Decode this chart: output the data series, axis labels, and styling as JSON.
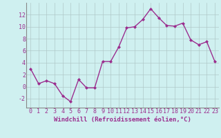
{
  "x": [
    0,
    1,
    2,
    3,
    4,
    5,
    6,
    7,
    8,
    9,
    10,
    11,
    12,
    13,
    14,
    15,
    16,
    17,
    18,
    19,
    20,
    21,
    22,
    23
  ],
  "y": [
    3,
    0.5,
    1,
    0.5,
    -1.5,
    -2.5,
    1.2,
    -0.2,
    -0.2,
    4.2,
    4.2,
    6.6,
    9.8,
    10.0,
    11.2,
    13.0,
    11.5,
    10.2,
    10.1,
    10.6,
    7.8,
    7.0,
    7.5,
    4.2
  ],
  "line_color": "#9b2d8e",
  "marker": "D",
  "marker_size": 2.0,
  "linewidth": 1.0,
  "bg_color": "#cff0f0",
  "grid_color": "#b0c8c8",
  "xlabel": "Windchill (Refroidissement éolien,°C)",
  "xlabel_fontsize": 6.5,
  "tick_fontsize": 6.0,
  "ylim": [
    -3.5,
    14.0
  ],
  "xlim": [
    -0.5,
    23.5
  ],
  "yticks": [
    -2,
    0,
    2,
    4,
    6,
    8,
    10,
    12
  ],
  "xticks": [
    0,
    1,
    2,
    3,
    4,
    5,
    6,
    7,
    8,
    9,
    10,
    11,
    12,
    13,
    14,
    15,
    16,
    17,
    18,
    19,
    20,
    21,
    22,
    23
  ]
}
